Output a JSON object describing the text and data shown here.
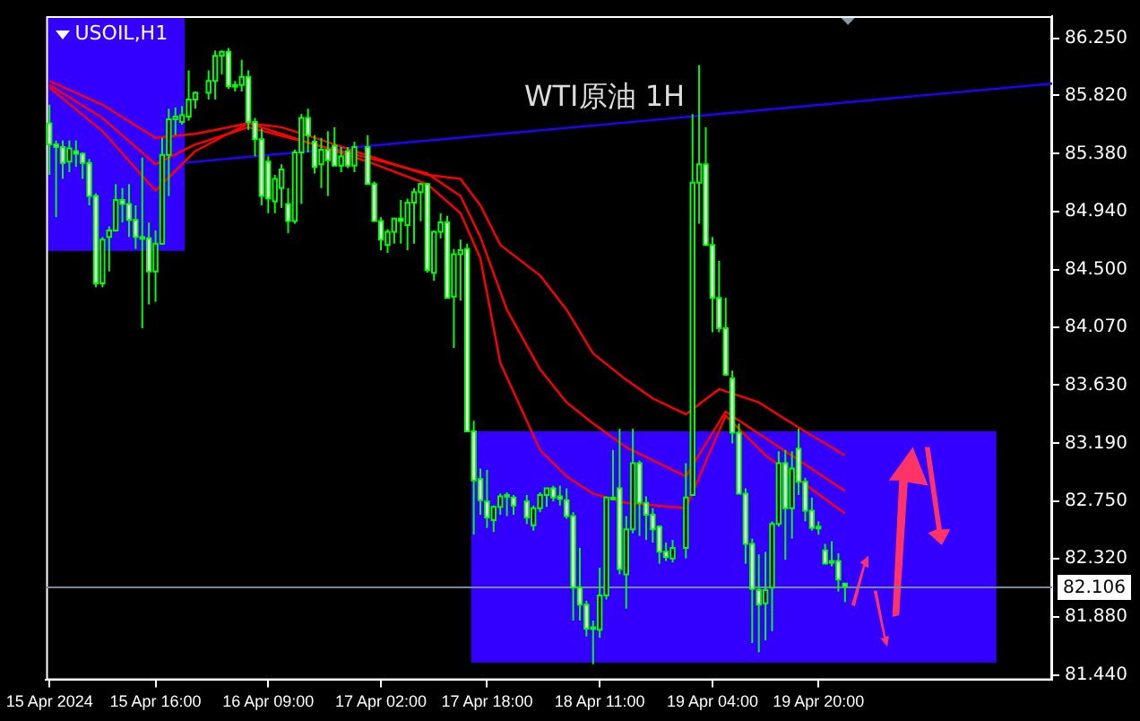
{
  "chart_data": {
    "type": "candlestick",
    "title": "USOIL,H1",
    "subtitle": "WTI原油 1H",
    "color": "#00ff00",
    "x": [
      "2024-04-15T00:00",
      "2024-04-15T01:00",
      "2024-04-15T02:00",
      "2024-04-15T03:00",
      "2024-04-15T04:00",
      "2024-04-15T05:00",
      "2024-04-15T06:00",
      "2024-04-15T07:00",
      "2024-04-15T08:00",
      "2024-04-15T09:00",
      "2024-04-15T10:00",
      "2024-04-15T11:00",
      "2024-04-15T12:00",
      "2024-04-15T13:00",
      "2024-04-15T14:00",
      "2024-04-15T15:00",
      "2024-04-15T16:00",
      "2024-04-15T17:00",
      "2024-04-15T18:00",
      "2024-04-15T19:00",
      "2024-04-15T20:00",
      "2024-04-15T21:00",
      "2024-04-15T22:00",
      "2024-04-16T00:00",
      "2024-04-16T01:00",
      "2024-04-16T02:00",
      "2024-04-16T03:00",
      "2024-04-16T04:00",
      "2024-04-16T05:00",
      "2024-04-16T06:00",
      "2024-04-16T07:00",
      "2024-04-16T08:00",
      "2024-04-16T09:00",
      "2024-04-16T10:00",
      "2024-04-16T11:00",
      "2024-04-16T12:00",
      "2024-04-16T13:00",
      "2024-04-16T14:00",
      "2024-04-16T15:00",
      "2024-04-16T16:00",
      "2024-04-16T17:00",
      "2024-04-16T18:00",
      "2024-04-16T19:00",
      "2024-04-16T20:00",
      "2024-04-16T21:00",
      "2024-04-16T22:00",
      "2024-04-17T00:00",
      "2024-04-17T01:00",
      "2024-04-17T02:00",
      "2024-04-17T03:00",
      "2024-04-17T04:00",
      "2024-04-17T05:00",
      "2024-04-17T06:00",
      "2024-04-17T07:00",
      "2024-04-17T08:00",
      "2024-04-17T09:00",
      "2024-04-17T10:00",
      "2024-04-17T11:00",
      "2024-04-17T12:00",
      "2024-04-17T13:00",
      "2024-04-17T14:00",
      "2024-04-17T15:00",
      "2024-04-17T16:00",
      "2024-04-17T17:00",
      "2024-04-17T18:00",
      "2024-04-17T19:00",
      "2024-04-17T20:00",
      "2024-04-17T21:00",
      "2024-04-17T22:00",
      "2024-04-18T00:00",
      "2024-04-18T01:00",
      "2024-04-18T02:00",
      "2024-04-18T03:00",
      "2024-04-18T04:00",
      "2024-04-18T05:00",
      "2024-04-18T06:00",
      "2024-04-18T07:00",
      "2024-04-18T08:00",
      "2024-04-18T09:00",
      "2024-04-18T10:00",
      "2024-04-18T11:00",
      "2024-04-18T12:00",
      "2024-04-18T13:00",
      "2024-04-18T14:00",
      "2024-04-18T15:00",
      "2024-04-18T16:00",
      "2024-04-18T17:00",
      "2024-04-18T18:00",
      "2024-04-18T19:00",
      "2024-04-18T20:00",
      "2024-04-18T21:00",
      "2024-04-18T22:00",
      "2024-04-19T00:00",
      "2024-04-19T01:00",
      "2024-04-19T02:00",
      "2024-04-19T03:00",
      "2024-04-19T04:00",
      "2024-04-19T05:00",
      "2024-04-19T06:00",
      "2024-04-19T07:00",
      "2024-04-19T08:00",
      "2024-04-19T09:00",
      "2024-04-19T10:00",
      "2024-04-19T11:00",
      "2024-04-19T12:00",
      "2024-04-19T13:00",
      "2024-04-19T14:00",
      "2024-04-19T15:00",
      "2024-04-19T16:00",
      "2024-04-19T17:00",
      "2024-04-19T18:00",
      "2024-04-19T19:00",
      "2024-04-19T20:00",
      "2024-04-19T21:00",
      "2024-04-19T22:00",
      "2024-04-19T23:00",
      "2024-04-20T00:00"
    ],
    "ohlc": [
      [
        85.61,
        85.75,
        85.22,
        85.45
      ],
      [
        85.45,
        85.48,
        84.9,
        85.43
      ],
      [
        85.43,
        85.48,
        85.19,
        85.31
      ],
      [
        85.32,
        85.48,
        85.24,
        85.42
      ],
      [
        85.4,
        85.48,
        85.28,
        85.38
      ],
      [
        85.38,
        85.39,
        85.19,
        85.31
      ],
      [
        85.31,
        85.34,
        84.99,
        85.06
      ],
      [
        85.06,
        85.08,
        84.37,
        84.4
      ],
      [
        84.4,
        84.75,
        84.37,
        84.73
      ],
      [
        84.75,
        84.83,
        84.49,
        84.8
      ],
      [
        84.8,
        85.15,
        84.79,
        85.03
      ],
      [
        85.03,
        85.12,
        84.86,
        85.0
      ],
      [
        85.0,
        85.15,
        84.75,
        84.88
      ],
      [
        84.88,
        84.99,
        84.66,
        84.75
      ],
      [
        84.75,
        85.35,
        84.06,
        84.74
      ],
      [
        84.74,
        84.86,
        84.24,
        84.49
      ],
      [
        84.49,
        84.8,
        84.26,
        84.7
      ],
      [
        84.7,
        85.5,
        84.69,
        85.37
      ],
      [
        85.37,
        85.72,
        85.06,
        85.64
      ],
      [
        85.64,
        85.73,
        85.52,
        85.66
      ],
      [
        85.62,
        85.74,
        85.6,
        85.67
      ],
      [
        85.66,
        86.01,
        85.63,
        85.79
      ],
      [
        85.79,
        85.85,
        85.72,
        85.84
      ],
      [
        85.84,
        86.01,
        85.79,
        85.93
      ],
      [
        85.93,
        86.16,
        85.79,
        86.12
      ],
      [
        86.12,
        86.16,
        85.98,
        86.15
      ],
      [
        86.15,
        86.18,
        85.87,
        85.89
      ],
      [
        85.89,
        85.93,
        85.85,
        85.9
      ],
      [
        85.9,
        86.09,
        85.85,
        85.96
      ],
      [
        85.96,
        86.01,
        85.56,
        85.62
      ],
      [
        85.62,
        85.65,
        85.36,
        85.49
      ],
      [
        85.49,
        85.57,
        84.99,
        85.06
      ],
      [
        85.32,
        85.36,
        84.93,
        85.04
      ],
      [
        85.02,
        85.22,
        84.93,
        85.19
      ],
      [
        85.12,
        85.3,
        84.97,
        85.26
      ],
      [
        85.0,
        85.12,
        84.78,
        84.87
      ],
      [
        84.87,
        85.41,
        84.85,
        85.39
      ],
      [
        85.39,
        85.68,
        85.0,
        85.65
      ],
      [
        85.65,
        85.72,
        85.39,
        85.52
      ],
      [
        85.47,
        85.52,
        85.23,
        85.28
      ],
      [
        85.3,
        85.5,
        85.12,
        85.41
      ],
      [
        85.41,
        85.55,
        85.06,
        85.33
      ],
      [
        85.44,
        85.58,
        85.29,
        85.29
      ],
      [
        85.29,
        85.43,
        85.24,
        85.36
      ],
      [
        85.4,
        85.43,
        85.27,
        85.29
      ],
      [
        85.29,
        85.47,
        85.24,
        85.43
      ],
      [
        85.43,
        85.52,
        85.15,
        85.15
      ],
      [
        85.15,
        85.17,
        84.87,
        84.87
      ],
      [
        84.87,
        84.9,
        84.65,
        84.73
      ],
      [
        84.69,
        84.81,
        84.63,
        84.79
      ],
      [
        84.79,
        84.89,
        84.7,
        84.89
      ],
      [
        84.89,
        85.03,
        84.7,
        84.87
      ],
      [
        84.84,
        85.04,
        84.65,
        85.01
      ],
      [
        85.01,
        85.12,
        84.7,
        85.09
      ],
      [
        85.09,
        85.16,
        84.87,
        85.15
      ],
      [
        85.15,
        85.16,
        84.48,
        84.5
      ],
      [
        84.48,
        84.8,
        84.42,
        84.79
      ],
      [
        84.79,
        84.93,
        84.74,
        84.86
      ],
      [
        84.86,
        84.91,
        84.29,
        84.29
      ],
      [
        84.3,
        84.66,
        83.91,
        84.62
      ],
      [
        84.62,
        84.73,
        84.27,
        84.65
      ],
      [
        84.66,
        84.7,
        83.28,
        83.28
      ],
      [
        83.28,
        83.36,
        82.5,
        82.91
      ],
      [
        82.92,
        83.0,
        82.65,
        82.76
      ],
      [
        82.75,
        82.99,
        82.55,
        82.63
      ],
      [
        82.61,
        82.72,
        82.52,
        82.71
      ],
      [
        82.71,
        82.81,
        82.65,
        82.79
      ],
      [
        82.8,
        82.82,
        82.64,
        82.79
      ],
      [
        82.78,
        82.8,
        82.65,
        82.72
      ],
      [
        82.75,
        82.8,
        82.58,
        82.63
      ],
      [
        82.57,
        82.72,
        82.53,
        82.7
      ],
      [
        82.7,
        82.82,
        82.67,
        82.8
      ],
      [
        82.8,
        82.85,
        82.71,
        82.85
      ],
      [
        82.85,
        82.87,
        82.75,
        82.78
      ],
      [
        82.79,
        82.87,
        82.72,
        82.77
      ],
      [
        82.76,
        82.85,
        82.62,
        82.64
      ],
      [
        82.64,
        82.67,
        81.85,
        82.1
      ],
      [
        82.1,
        82.4,
        81.85,
        81.97
      ],
      [
        81.97,
        82.0,
        81.73,
        81.79
      ],
      [
        81.79,
        81.85,
        81.52,
        81.8
      ],
      [
        81.78,
        82.25,
        81.72,
        82.04
      ],
      [
        82.04,
        82.78,
        82.01,
        82.78
      ],
      [
        82.78,
        83.14,
        82.76,
        82.77
      ],
      [
        82.85,
        83.3,
        82.2,
        82.24
      ],
      [
        82.2,
        82.64,
        81.94,
        82.54
      ],
      [
        82.54,
        83.3,
        82.51,
        83.04
      ],
      [
        83.04,
        83.06,
        82.49,
        82.74
      ],
      [
        82.74,
        82.79,
        82.46,
        82.65
      ],
      [
        82.65,
        82.7,
        82.44,
        82.54
      ],
      [
        82.56,
        82.57,
        82.28,
        82.37
      ],
      [
        82.37,
        82.44,
        82.3,
        82.33
      ],
      [
        82.32,
        82.46,
        82.29,
        82.4
      ],
      [
        82.4,
        83.04,
        82.32,
        82.78
      ],
      [
        82.8,
        85.68,
        82.8,
        85.16
      ],
      [
        85.16,
        86.05,
        84.85,
        85.3
      ],
      [
        85.3,
        85.58,
        84.69,
        84.69
      ],
      [
        84.69,
        84.75,
        84.03,
        84.29
      ],
      [
        84.29,
        84.57,
        84.03,
        84.06
      ],
      [
        84.06,
        84.29,
        83.7,
        83.71
      ],
      [
        83.68,
        83.74,
        83.19,
        83.27
      ],
      [
        83.27,
        83.34,
        82.81,
        82.81
      ],
      [
        82.81,
        82.85,
        82.28,
        82.43
      ],
      [
        82.43,
        82.47,
        81.68,
        82.09
      ],
      [
        82.08,
        82.35,
        81.61,
        81.97
      ],
      [
        81.98,
        82.37,
        81.7,
        82.08
      ],
      [
        82.1,
        82.6,
        81.77,
        82.58
      ],
      [
        82.58,
        83.13,
        82.56,
        83.04
      ],
      [
        83.04,
        83.14,
        82.31,
        82.7
      ],
      [
        82.7,
        83.13,
        82.47,
        83.0
      ],
      [
        83.15,
        83.3,
        82.8,
        82.9
      ],
      [
        82.9,
        82.93,
        82.6,
        82.68
      ],
      [
        82.68,
        82.78,
        82.53,
        82.55
      ],
      [
        82.56,
        82.6,
        82.5,
        82.55
      ],
      [
        82.38,
        82.43,
        82.28,
        82.28
      ],
      [
        82.3,
        82.45,
        82.26,
        82.29
      ],
      [
        82.3,
        82.36,
        82.07,
        82.16
      ],
      [
        82.13,
        82.13,
        81.99,
        82.11
      ]
    ],
    "series": [
      {
        "type": "line",
        "color": "#ff0000",
        "x": [
          "2024-04-15T00:00",
          "2024-04-15T08:00",
          "2024-04-15T16:00",
          "2024-04-15T22:00",
          "2024-04-16T06:00",
          "2024-04-16T11:00",
          "2024-04-16T16:00",
          "2024-04-16T22:00",
          "2024-04-17T04:00",
          "2024-04-17T09:00",
          "2024-04-17T14:00",
          "2024-04-17T17:00",
          "2024-04-17T20:00",
          "2024-04-18T02:00",
          "2024-04-18T06:00",
          "2024-04-18T10:00",
          "2024-04-18T15:00",
          "2024-04-18T19:00",
          "2024-04-19T00:00",
          "2024-04-19T05:00",
          "2024-04-19T11:00",
          "2024-04-19T17:00",
          "2024-04-20T00:00"
        ],
        "values": [
          85.93,
          85.75,
          85.5,
          85.53,
          85.61,
          85.58,
          85.5,
          85.4,
          85.3,
          85.22,
          85.19,
          84.99,
          84.69,
          84.46,
          84.2,
          83.87,
          83.67,
          83.53,
          83.41,
          83.6,
          83.5,
          83.31,
          83.1
        ]
      },
      {
        "type": "line",
        "color": "#ff0000",
        "x": [
          "2024-04-15T00:00",
          "2024-04-15T08:00",
          "2024-04-15T16:00",
          "2024-04-15T22:00",
          "2024-04-16T06:00",
          "2024-04-16T16:00",
          "2024-04-17T00:00",
          "2024-04-17T09:00",
          "2024-04-17T14:00",
          "2024-04-17T17:00",
          "2024-04-17T21:00",
          "2024-04-18T02:00",
          "2024-04-18T06:00",
          "2024-04-18T10:00",
          "2024-04-18T15:00",
          "2024-04-19T00:00",
          "2024-04-19T06:00",
          "2024-04-19T12:00",
          "2024-04-20T00:00"
        ],
        "values": [
          85.9,
          85.65,
          85.3,
          85.45,
          85.58,
          85.45,
          85.35,
          85.23,
          85.06,
          84.75,
          84.2,
          83.75,
          83.5,
          83.34,
          83.16,
          82.94,
          83.43,
          83.23,
          82.83
        ]
      },
      {
        "type": "line",
        "color": "#ff0000",
        "x": [
          "2024-04-15T00:00",
          "2024-04-15T08:00",
          "2024-04-15T16:00",
          "2024-04-15T22:00",
          "2024-04-16T06:00",
          "2024-04-16T16:00",
          "2024-04-17T00:00",
          "2024-04-17T09:00",
          "2024-04-17T14:00",
          "2024-04-17T17:00",
          "2024-04-17T20:00",
          "2024-04-18T02:00",
          "2024-04-18T06:00",
          "2024-04-18T10:00",
          "2024-04-18T15:00",
          "2024-04-19T00:00",
          "2024-04-19T06:00",
          "2024-04-19T12:00",
          "2024-04-20T00:00"
        ],
        "values": [
          85.88,
          85.55,
          85.1,
          85.4,
          85.61,
          85.45,
          85.32,
          85.15,
          84.93,
          84.59,
          83.8,
          83.14,
          82.94,
          82.81,
          82.74,
          82.7,
          83.4,
          83.1,
          82.66
        ]
      },
      {
        "type": "line",
        "color": "#2200ff",
        "x": [
          "2024-04-15T20:00",
          "2024-04-21T07:15"
        ],
        "values": [
          85.31,
          85.91
        ]
      }
    ],
    "xlim": [
      "2024-04-14T23:30",
      "2024-04-21T07:15"
    ],
    "xticks": [
      {
        "value": "2024-04-15T00:00",
        "label": "15 Apr 2024"
      },
      {
        "value": "2024-04-15T16:00",
        "label": "15 Apr 16:00"
      },
      {
        "value": "2024-04-16T09:00",
        "label": "16 Apr 09:00"
      },
      {
        "value": "2024-04-17T02:00",
        "label": "17 Apr 02:00"
      },
      {
        "value": "2024-04-17T18:00",
        "label": "17 Apr 18:00"
      },
      {
        "value": "2024-04-18T11:00",
        "label": "18 Apr 11:00"
      },
      {
        "value": "2024-04-19T04:00",
        "label": "19 Apr 04:00"
      },
      {
        "value": "2024-04-19T20:00",
        "label": "19 Apr 20:00"
      }
    ],
    "ylim": [
      81.4,
      86.42
    ],
    "yticks": [
      {
        "value": 86.25,
        "label": "86.250"
      },
      {
        "value": 85.82,
        "label": "85.820"
      },
      {
        "value": 85.38,
        "label": "85.380"
      },
      {
        "value": 84.94,
        "label": "84.940"
      },
      {
        "value": 84.5,
        "label": "84.500"
      },
      {
        "value": 84.07,
        "label": "84.070"
      },
      {
        "value": 83.63,
        "label": "83.630"
      },
      {
        "value": 83.19,
        "label": "83.190"
      },
      {
        "value": 82.75,
        "label": "82.750"
      },
      {
        "value": 82.32,
        "label": "82.320"
      },
      {
        "value": 81.88,
        "label": "81.880"
      },
      {
        "value": 81.44,
        "label": "81.440"
      }
    ],
    "ref_lines": [
      {
        "axis": "y",
        "value": 82.106,
        "label": "82.106",
        "color": "#778899"
      }
    ]
  }
}
